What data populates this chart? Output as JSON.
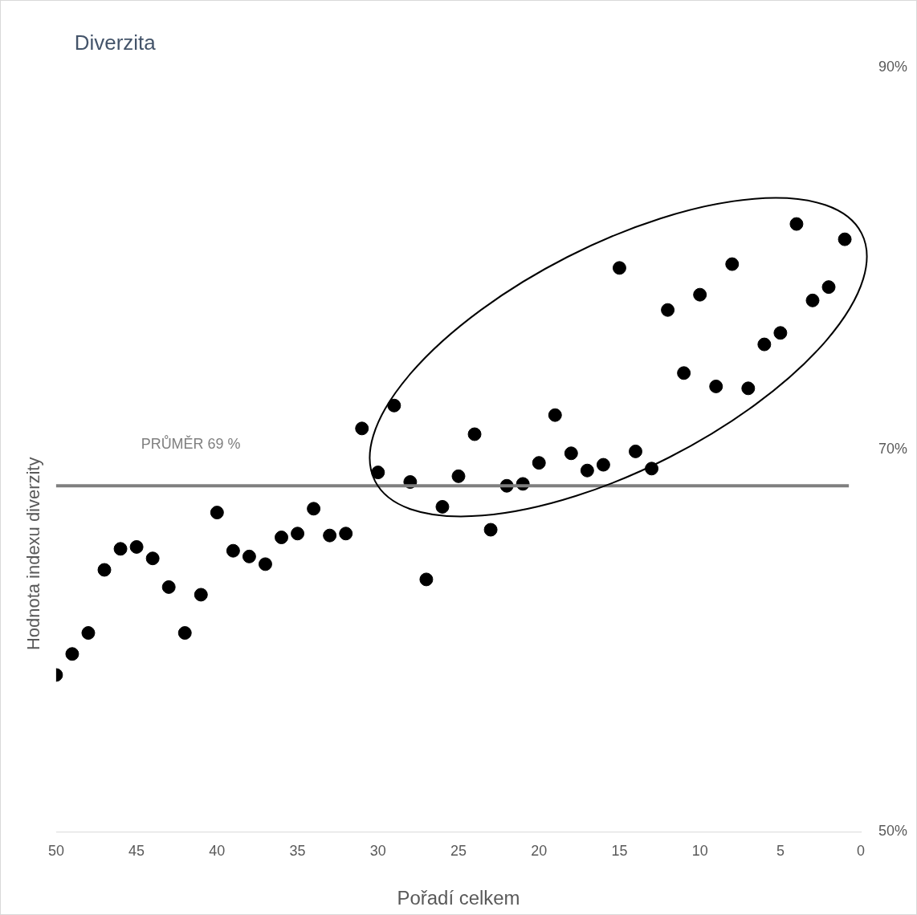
{
  "chart_data": {
    "type": "scatter",
    "title": "Diverzita",
    "xlabel": "Pořadí celkem",
    "ylabel": "Hodnota indexu diverzity",
    "x": [
      1,
      2,
      3,
      4,
      5,
      6,
      7,
      8,
      9,
      10,
      11,
      12,
      13,
      14,
      15,
      16,
      17,
      18,
      19,
      20,
      21,
      22,
      23,
      24,
      25,
      26,
      27,
      28,
      29,
      30,
      31,
      32,
      33,
      34,
      35,
      36,
      37,
      38,
      39,
      40,
      41,
      42,
      43,
      44,
      45,
      46,
      47,
      48,
      49,
      50
    ],
    "series": [
      {
        "color": "#000000",
        "marker": "circle",
        "values": [
          81.0,
          78.5,
          77.8,
          81.8,
          76.1,
          75.5,
          73.2,
          79.7,
          73.3,
          78.1,
          74.0,
          77.3,
          69.0,
          69.9,
          79.5,
          69.2,
          68.9,
          69.8,
          71.8,
          69.3,
          68.2,
          68.1,
          65.8,
          70.8,
          68.6,
          67.0,
          63.2,
          68.3,
          72.3,
          68.8,
          71.1,
          65.6,
          65.5,
          66.9,
          65.6,
          65.4,
          64.0,
          64.4,
          64.7,
          66.7,
          62.4,
          60.4,
          62.8,
          64.3,
          64.9,
          64.8,
          63.7,
          60.4,
          59.3,
          58.2
        ]
      }
    ],
    "xlim": [
      50,
      0
    ],
    "xticks": [
      50,
      45,
      40,
      35,
      30,
      25,
      20,
      15,
      10,
      5,
      0
    ],
    "ylim": [
      50,
      90
    ],
    "yticks": [
      {
        "value": 50,
        "label": "50%"
      },
      {
        "value": 70,
        "label": "70%"
      },
      {
        "value": 90,
        "label": "90%"
      }
    ],
    "ref_lines": [
      {
        "axis": "y",
        "value": 68.1,
        "label": "PRŮMĚR 69 %",
        "color": "#7f7f7f"
      }
    ]
  }
}
